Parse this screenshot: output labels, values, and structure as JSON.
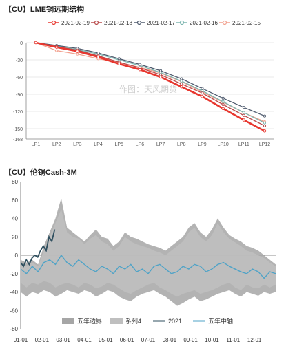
{
  "charts": {
    "top": {
      "title": "【CU】LME铜远期结构",
      "watermark": "作图：天风期货"
    },
    "bottom": {
      "title": "【CU】伦铜Cash-3M"
    }
  },
  "chart_data": [
    {
      "type": "line",
      "title": "【CU】LME铜远期结构",
      "categories": [
        "LP1",
        "LP2",
        "LP3",
        "LP4",
        "LP5",
        "LP6",
        "LP7",
        "LP8",
        "LP9",
        "LP10",
        "LP11",
        "LP12"
      ],
      "ylim": [
        -168,
        0
      ],
      "yticks": [
        0,
        -30,
        -60,
        -90,
        -120,
        -150,
        -168
      ],
      "grid": true,
      "legend": "top",
      "series": [
        {
          "name": "2021-02-19",
          "color": "#e8372f",
          "values": [
            0,
            -8,
            -15,
            -25,
            -37,
            -47,
            -60,
            -77,
            -94,
            -115,
            -135,
            -154
          ]
        },
        {
          "name": "2021-02-18",
          "color": "#b84a4a",
          "values": [
            0,
            -7,
            -13,
            -23,
            -34,
            -44,
            -56,
            -72,
            -88,
            -108,
            -127,
            -145
          ]
        },
        {
          "name": "2021-02-17",
          "color": "#4f5b6e",
          "values": [
            0,
            -5,
            -10,
            -18,
            -28,
            -38,
            -49,
            -63,
            -80,
            -97,
            -113,
            -128
          ]
        },
        {
          "name": "2021-02-16",
          "color": "#7eb6b0",
          "values": [
            0,
            -6,
            -12,
            -20,
            -30,
            -40,
            -52,
            -67,
            -84,
            -103,
            -122,
            -140
          ]
        },
        {
          "name": "2021-02-15",
          "color": "#f2a08e",
          "values": [
            0,
            -14,
            -20,
            -28,
            -35,
            -43,
            -53,
            -68,
            -86,
            -104,
            -122,
            -138
          ]
        }
      ]
    },
    {
      "type": "area",
      "title": "【CU】伦铜Cash-3M",
      "xticks": [
        "01-01",
        "02-01",
        "03-01",
        "04-01",
        "05-01",
        "06-01",
        "07-01",
        "08-01",
        "09-01",
        "10-01",
        "11-01",
        "12-01"
      ],
      "ylim": [
        -80,
        80
      ],
      "yticks": [
        80,
        60,
        40,
        20,
        0,
        -20,
        -40,
        -60,
        -80
      ],
      "grid": false,
      "legend": "bottom",
      "series": [
        {
          "name": "五年边界",
          "color": "#a6a6a6",
          "upper": [
            -5,
            -8,
            -5,
            -10,
            10,
            25,
            40,
            62,
            30,
            25,
            20,
            15,
            22,
            28,
            20,
            18,
            10,
            15,
            25,
            20,
            18,
            15,
            12,
            10,
            8,
            5,
            10,
            15,
            20,
            30,
            35,
            25,
            20,
            28,
            40,
            30,
            22,
            18,
            15,
            10,
            8,
            5,
            0,
            -5,
            -10
          ],
          "lower": [
            -40,
            -45,
            -40,
            -42,
            -38,
            -40,
            -45,
            -42,
            -38,
            -40,
            -42,
            -38,
            -40,
            -45,
            -42,
            -38,
            -40,
            -45,
            -48,
            -50,
            -45,
            -42,
            -40,
            -38,
            -42,
            -45,
            -50,
            -55,
            -52,
            -48,
            -45,
            -50,
            -48,
            -45,
            -42,
            -40,
            -38,
            -42,
            -45,
            -40,
            -42,
            -44,
            -40,
            -42,
            -40
          ]
        },
        {
          "name": "系列4",
          "color": "#bfbfbf",
          "upper": [
            -10,
            -12,
            -8,
            -12,
            5,
            20,
            35,
            50,
            25,
            20,
            18,
            12,
            18,
            22,
            15,
            12,
            5,
            10,
            20,
            15,
            12,
            10,
            8,
            5,
            3,
            0,
            5,
            10,
            15,
            25,
            30,
            20,
            15,
            22,
            35,
            25,
            18,
            14,
            10,
            5,
            3,
            0,
            -3,
            -8,
            -12
          ],
          "lower": [
            -30,
            -35,
            -30,
            -32,
            -28,
            -30,
            -35,
            -32,
            -30,
            -32,
            -35,
            -30,
            -32,
            -36,
            -34,
            -30,
            -32,
            -36,
            -40,
            -42,
            -38,
            -35,
            -32,
            -30,
            -35,
            -38,
            -42,
            -45,
            -42,
            -40,
            -38,
            -42,
            -40,
            -38,
            -35,
            -32,
            -30,
            -35,
            -38,
            -32,
            -35,
            -36,
            -32,
            -35,
            -32
          ]
        },
        {
          "name": "2021",
          "color": "#2f4f5f",
          "values": [
            -8,
            -12,
            -5,
            -10,
            -3,
            0,
            -2,
            5,
            10,
            5,
            20,
            15,
            28
          ]
        },
        {
          "name": "五年中轴",
          "color": "#4fa3c7",
          "values": [
            -15,
            -20,
            -12,
            -18,
            -8,
            -5,
            -10,
            0,
            -8,
            -12,
            -5,
            -10,
            -15,
            -18,
            -12,
            -15,
            -20,
            -12,
            -15,
            -10,
            -18,
            -15,
            -20,
            -12,
            -10,
            -15,
            -20,
            -18,
            -12,
            -15,
            -10,
            -12,
            -18,
            -15,
            -10,
            -8,
            -12,
            -15,
            -18,
            -20,
            -15,
            -18,
            -25,
            -18,
            -20
          ]
        }
      ]
    }
  ]
}
